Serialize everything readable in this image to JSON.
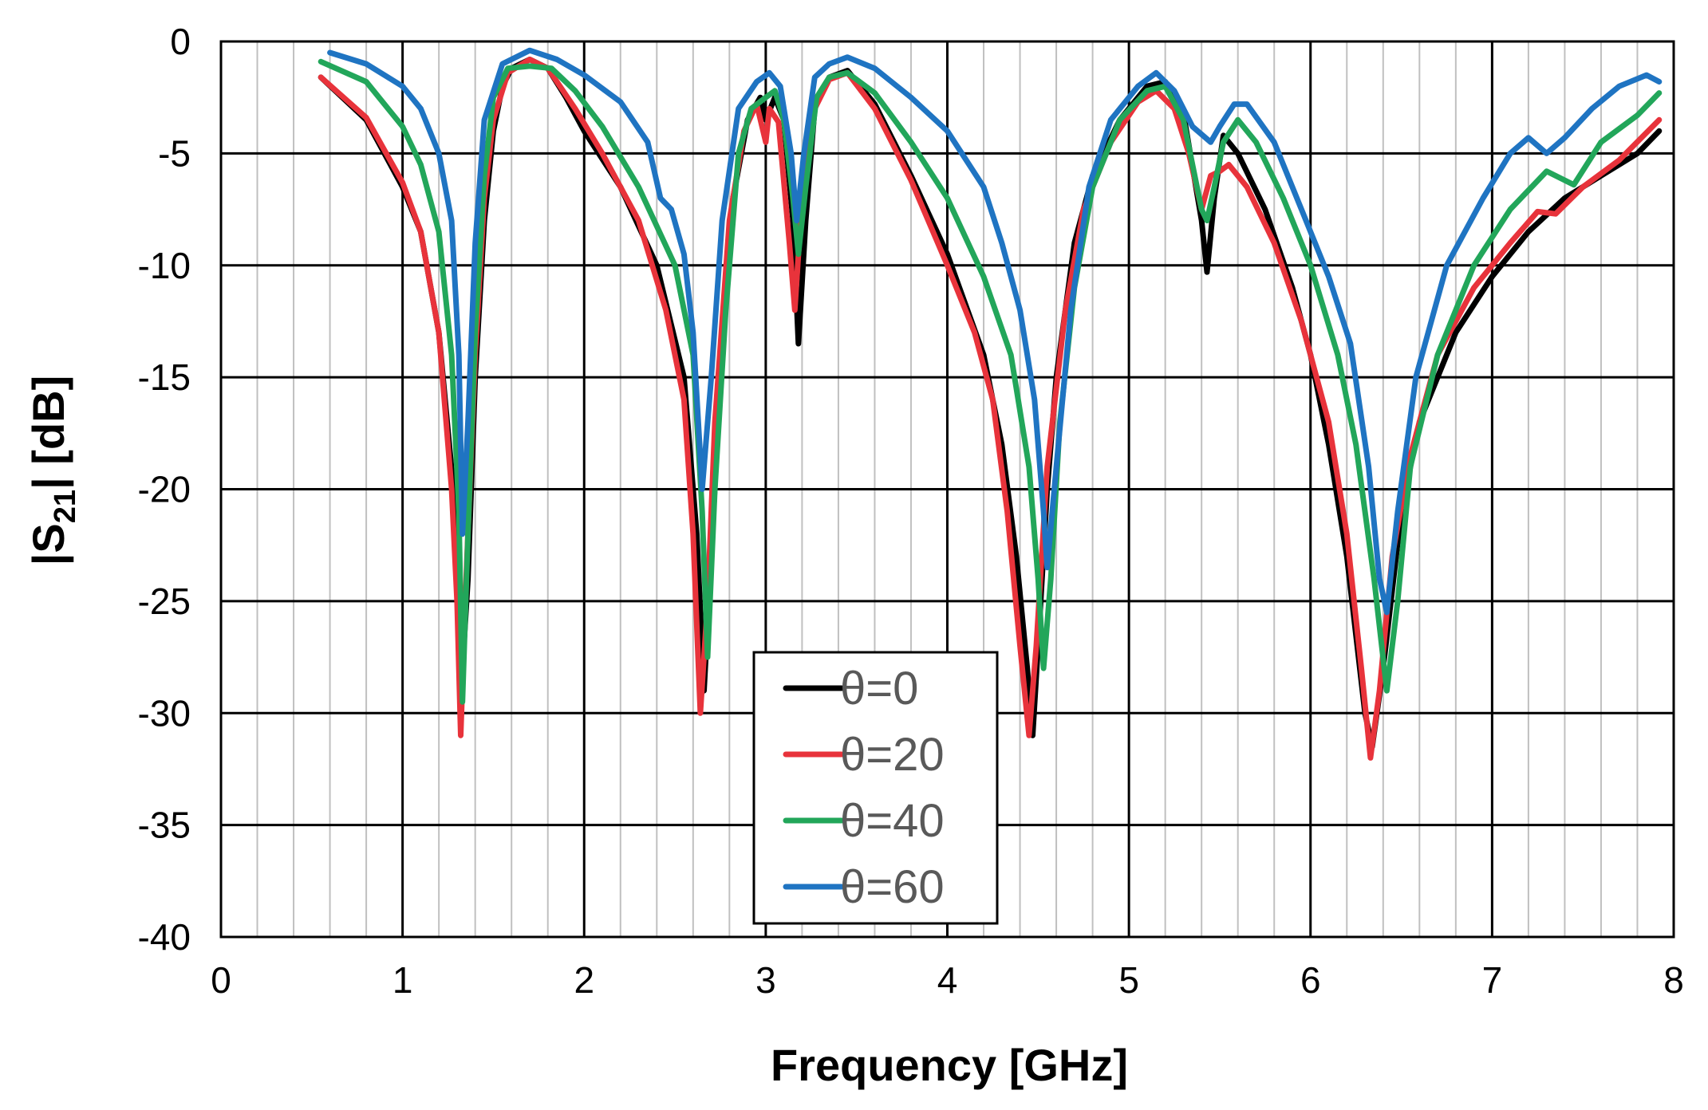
{
  "chart_data": {
    "type": "line",
    "title": "",
    "xlabel": "Frequency [GHz]",
    "ylabel": {
      "main": "|S",
      "sub": "21",
      "rest": "| [dB]"
    },
    "xlim": [
      0,
      8
    ],
    "ylim": [
      -40,
      0
    ],
    "xticks": [
      0,
      1,
      2,
      3,
      4,
      5,
      6,
      7,
      8
    ],
    "yticks": [
      -40,
      -35,
      -30,
      -25,
      -20,
      -15,
      -10,
      -5,
      0
    ],
    "x_minor_step": 0.2,
    "grid": true,
    "legend_position": "bottom-center",
    "series": [
      {
        "name": "θ=0",
        "color": "#000000",
        "points": [
          [
            0.55,
            -1.6
          ],
          [
            0.8,
            -3.5
          ],
          [
            1.0,
            -6.5
          ],
          [
            1.1,
            -8.5
          ],
          [
            1.2,
            -13
          ],
          [
            1.28,
            -20
          ],
          [
            1.31,
            -24
          ],
          [
            1.33,
            -28
          ],
          [
            1.36,
            -24
          ],
          [
            1.4,
            -15
          ],
          [
            1.45,
            -8
          ],
          [
            1.5,
            -4
          ],
          [
            1.55,
            -2
          ],
          [
            1.6,
            -1.2
          ],
          [
            1.7,
            -0.8
          ],
          [
            1.8,
            -1.2
          ],
          [
            1.9,
            -2.5
          ],
          [
            2.0,
            -4
          ],
          [
            2.2,
            -6.5
          ],
          [
            2.4,
            -10
          ],
          [
            2.55,
            -15
          ],
          [
            2.62,
            -22
          ],
          [
            2.66,
            -29
          ],
          [
            2.7,
            -23
          ],
          [
            2.75,
            -15
          ],
          [
            2.82,
            -7
          ],
          [
            2.9,
            -3.5
          ],
          [
            2.97,
            -2.5
          ],
          [
            3.0,
            -3.5
          ],
          [
            3.05,
            -2.5
          ],
          [
            3.1,
            -3.5
          ],
          [
            3.15,
            -8
          ],
          [
            3.18,
            -13.5
          ],
          [
            3.22,
            -8
          ],
          [
            3.27,
            -3
          ],
          [
            3.35,
            -1.6
          ],
          [
            3.45,
            -1.3
          ],
          [
            3.6,
            -2.8
          ],
          [
            3.8,
            -6
          ],
          [
            4.0,
            -9.5
          ],
          [
            4.2,
            -14
          ],
          [
            4.3,
            -18
          ],
          [
            4.38,
            -23
          ],
          [
            4.44,
            -28
          ],
          [
            4.47,
            -31
          ],
          [
            4.5,
            -27
          ],
          [
            4.55,
            -20
          ],
          [
            4.6,
            -15
          ],
          [
            4.7,
            -9
          ],
          [
            4.8,
            -6
          ],
          [
            4.95,
            -3.5
          ],
          [
            5.1,
            -2
          ],
          [
            5.2,
            -1.8
          ],
          [
            5.3,
            -3.2
          ],
          [
            5.4,
            -8
          ],
          [
            5.43,
            -10.3
          ],
          [
            5.47,
            -7
          ],
          [
            5.52,
            -4.2
          ],
          [
            5.6,
            -5
          ],
          [
            5.75,
            -7.5
          ],
          [
            5.9,
            -11
          ],
          [
            6.0,
            -14
          ],
          [
            6.1,
            -18
          ],
          [
            6.2,
            -23
          ],
          [
            6.3,
            -30
          ],
          [
            6.34,
            -31.5
          ],
          [
            6.4,
            -28
          ],
          [
            6.5,
            -21
          ],
          [
            6.6,
            -17
          ],
          [
            6.8,
            -13
          ],
          [
            7.0,
            -10.5
          ],
          [
            7.2,
            -8.5
          ],
          [
            7.4,
            -7
          ],
          [
            7.6,
            -6
          ],
          [
            7.8,
            -5
          ],
          [
            7.92,
            -4
          ]
        ]
      },
      {
        "name": "θ=20",
        "color": "#e8333b",
        "points": [
          [
            0.55,
            -1.6
          ],
          [
            0.8,
            -3.4
          ],
          [
            1.0,
            -6.3
          ],
          [
            1.1,
            -8.5
          ],
          [
            1.2,
            -13
          ],
          [
            1.27,
            -20
          ],
          [
            1.3,
            -25
          ],
          [
            1.32,
            -31
          ],
          [
            1.35,
            -24
          ],
          [
            1.4,
            -14
          ],
          [
            1.45,
            -7
          ],
          [
            1.5,
            -3.5
          ],
          [
            1.58,
            -1.4
          ],
          [
            1.7,
            -0.8
          ],
          [
            1.8,
            -1.2
          ],
          [
            1.95,
            -3
          ],
          [
            2.1,
            -5
          ],
          [
            2.3,
            -8
          ],
          [
            2.45,
            -12
          ],
          [
            2.55,
            -16
          ],
          [
            2.6,
            -22
          ],
          [
            2.64,
            -30
          ],
          [
            2.68,
            -25
          ],
          [
            2.72,
            -17
          ],
          [
            2.8,
            -8
          ],
          [
            2.88,
            -4
          ],
          [
            2.95,
            -2.8
          ],
          [
            3.0,
            -4.5
          ],
          [
            3.02,
            -3
          ],
          [
            3.07,
            -3.6
          ],
          [
            3.13,
            -9
          ],
          [
            3.16,
            -12
          ],
          [
            3.2,
            -7
          ],
          [
            3.27,
            -3
          ],
          [
            3.35,
            -1.7
          ],
          [
            3.45,
            -1.4
          ],
          [
            3.6,
            -3
          ],
          [
            3.8,
            -6.2
          ],
          [
            4.0,
            -10
          ],
          [
            4.15,
            -13
          ],
          [
            4.25,
            -16
          ],
          [
            4.33,
            -21
          ],
          [
            4.4,
            -27
          ],
          [
            4.45,
            -31
          ],
          [
            4.49,
            -27
          ],
          [
            4.55,
            -19
          ],
          [
            4.65,
            -12
          ],
          [
            4.75,
            -7.5
          ],
          [
            4.9,
            -4.5
          ],
          [
            5.05,
            -2.7
          ],
          [
            5.15,
            -2.2
          ],
          [
            5.25,
            -3
          ],
          [
            5.33,
            -5
          ],
          [
            5.4,
            -7.5
          ],
          [
            5.45,
            -6
          ],
          [
            5.5,
            -5.8
          ],
          [
            5.55,
            -5.5
          ],
          [
            5.65,
            -6.5
          ],
          [
            5.8,
            -9
          ],
          [
            5.95,
            -12.5
          ],
          [
            6.1,
            -17
          ],
          [
            6.2,
            -22
          ],
          [
            6.28,
            -28
          ],
          [
            6.33,
            -32
          ],
          [
            6.38,
            -29
          ],
          [
            6.45,
            -23
          ],
          [
            6.55,
            -18.5
          ],
          [
            6.7,
            -14
          ],
          [
            6.9,
            -11
          ],
          [
            7.1,
            -9
          ],
          [
            7.25,
            -7.6
          ],
          [
            7.35,
            -7.7
          ],
          [
            7.5,
            -6.5
          ],
          [
            7.7,
            -5.3
          ],
          [
            7.92,
            -3.5
          ]
        ]
      },
      {
        "name": "θ=40",
        "color": "#22a65a",
        "points": [
          [
            0.55,
            -0.9
          ],
          [
            0.8,
            -1.8
          ],
          [
            1.0,
            -3.8
          ],
          [
            1.1,
            -5.5
          ],
          [
            1.2,
            -8.5
          ],
          [
            1.27,
            -14
          ],
          [
            1.31,
            -21
          ],
          [
            1.33,
            -29.5
          ],
          [
            1.36,
            -22
          ],
          [
            1.4,
            -13
          ],
          [
            1.45,
            -6
          ],
          [
            1.5,
            -2.5
          ],
          [
            1.58,
            -1.2
          ],
          [
            1.7,
            -1.1
          ],
          [
            1.82,
            -1.2
          ],
          [
            1.95,
            -2.2
          ],
          [
            2.1,
            -3.8
          ],
          [
            2.3,
            -6.5
          ],
          [
            2.5,
            -10
          ],
          [
            2.6,
            -14
          ],
          [
            2.65,
            -21
          ],
          [
            2.68,
            -27.5
          ],
          [
            2.72,
            -20
          ],
          [
            2.78,
            -12
          ],
          [
            2.85,
            -5
          ],
          [
            2.92,
            -3
          ],
          [
            3.0,
            -2.5
          ],
          [
            3.05,
            -2.2
          ],
          [
            3.1,
            -3.5
          ],
          [
            3.15,
            -7
          ],
          [
            3.18,
            -9.5
          ],
          [
            3.22,
            -6.5
          ],
          [
            3.28,
            -2.5
          ],
          [
            3.35,
            -1.6
          ],
          [
            3.45,
            -1.4
          ],
          [
            3.6,
            -2.3
          ],
          [
            3.8,
            -4.5
          ],
          [
            4.0,
            -7
          ],
          [
            4.2,
            -10.5
          ],
          [
            4.35,
            -14
          ],
          [
            4.45,
            -19
          ],
          [
            4.5,
            -24
          ],
          [
            4.53,
            -28
          ],
          [
            4.57,
            -24
          ],
          [
            4.62,
            -17
          ],
          [
            4.7,
            -11
          ],
          [
            4.8,
            -6.5
          ],
          [
            4.95,
            -3.5
          ],
          [
            5.1,
            -2.2
          ],
          [
            5.2,
            -2
          ],
          [
            5.3,
            -3.5
          ],
          [
            5.4,
            -7.5
          ],
          [
            5.43,
            -8
          ],
          [
            5.47,
            -6.5
          ],
          [
            5.52,
            -4.5
          ],
          [
            5.6,
            -3.5
          ],
          [
            5.7,
            -4.5
          ],
          [
            5.85,
            -7
          ],
          [
            6.0,
            -10
          ],
          [
            6.15,
            -14
          ],
          [
            6.25,
            -18
          ],
          [
            6.35,
            -24
          ],
          [
            6.42,
            -29
          ],
          [
            6.48,
            -25
          ],
          [
            6.55,
            -19
          ],
          [
            6.7,
            -14
          ],
          [
            6.9,
            -10
          ],
          [
            7.1,
            -7.5
          ],
          [
            7.3,
            -5.8
          ],
          [
            7.45,
            -6.4
          ],
          [
            7.6,
            -4.5
          ],
          [
            7.8,
            -3.3
          ],
          [
            7.92,
            -2.3
          ]
        ]
      },
      {
        "name": "θ=60",
        "color": "#1f74c2",
        "points": [
          [
            0.6,
            -0.5
          ],
          [
            0.8,
            -1
          ],
          [
            1.0,
            -2
          ],
          [
            1.1,
            -3
          ],
          [
            1.2,
            -5
          ],
          [
            1.27,
            -8
          ],
          [
            1.31,
            -14
          ],
          [
            1.33,
            -22
          ],
          [
            1.36,
            -17
          ],
          [
            1.4,
            -9
          ],
          [
            1.45,
            -3.5
          ],
          [
            1.55,
            -1
          ],
          [
            1.7,
            -0.4
          ],
          [
            1.85,
            -0.8
          ],
          [
            2.0,
            -1.5
          ],
          [
            2.2,
            -2.7
          ],
          [
            2.35,
            -4.5
          ],
          [
            2.42,
            -7
          ],
          [
            2.48,
            -7.5
          ],
          [
            2.55,
            -9.5
          ],
          [
            2.6,
            -13
          ],
          [
            2.65,
            -20
          ],
          [
            2.7,
            -15
          ],
          [
            2.76,
            -8
          ],
          [
            2.85,
            -3
          ],
          [
            2.95,
            -1.8
          ],
          [
            3.02,
            -1.4
          ],
          [
            3.08,
            -2
          ],
          [
            3.14,
            -5
          ],
          [
            3.17,
            -8
          ],
          [
            3.21,
            -5
          ],
          [
            3.27,
            -1.6
          ],
          [
            3.35,
            -1
          ],
          [
            3.45,
            -0.7
          ],
          [
            3.6,
            -1.2
          ],
          [
            3.8,
            -2.5
          ],
          [
            4.0,
            -4
          ],
          [
            4.2,
            -6.5
          ],
          [
            4.3,
            -9
          ],
          [
            4.4,
            -12
          ],
          [
            4.48,
            -16
          ],
          [
            4.53,
            -21
          ],
          [
            4.55,
            -23.5
          ],
          [
            4.6,
            -19
          ],
          [
            4.68,
            -12
          ],
          [
            4.78,
            -6.5
          ],
          [
            4.9,
            -3.5
          ],
          [
            5.05,
            -2
          ],
          [
            5.15,
            -1.4
          ],
          [
            5.25,
            -2.2
          ],
          [
            5.35,
            -3.8
          ],
          [
            5.45,
            -4.5
          ],
          [
            5.5,
            -3.8
          ],
          [
            5.58,
            -2.8
          ],
          [
            5.65,
            -2.8
          ],
          [
            5.8,
            -4.5
          ],
          [
            5.95,
            -7.5
          ],
          [
            6.1,
            -10.5
          ],
          [
            6.22,
            -13.5
          ],
          [
            6.32,
            -19
          ],
          [
            6.38,
            -24
          ],
          [
            6.42,
            -25.5
          ],
          [
            6.48,
            -21
          ],
          [
            6.58,
            -15
          ],
          [
            6.75,
            -10
          ],
          [
            6.95,
            -7
          ],
          [
            7.1,
            -5
          ],
          [
            7.2,
            -4.3
          ],
          [
            7.3,
            -5
          ],
          [
            7.4,
            -4.3
          ],
          [
            7.55,
            -3
          ],
          [
            7.7,
            -2
          ],
          [
            7.85,
            -1.5
          ],
          [
            7.92,
            -1.8
          ]
        ]
      }
    ]
  }
}
